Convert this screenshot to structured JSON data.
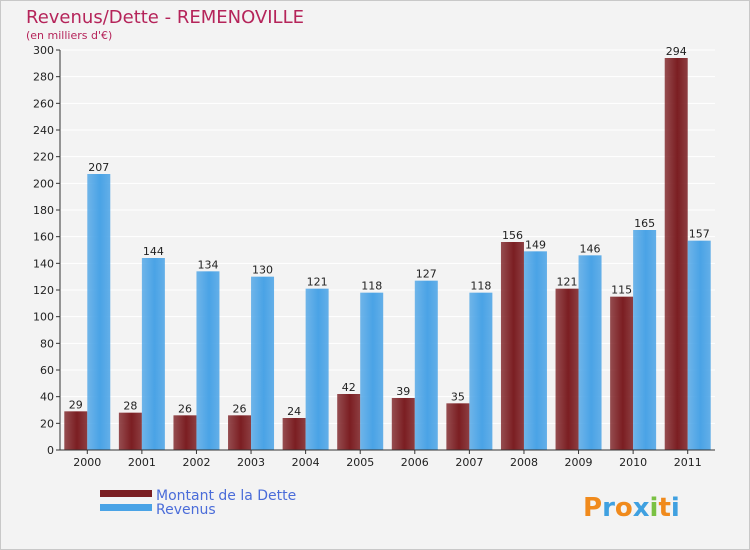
{
  "chart_data": {
    "type": "bar",
    "title": "Revenus/Dette - REMENOVILLE",
    "subtitle": "(en milliers d'€)",
    "categories": [
      "2000",
      "2001",
      "2002",
      "2003",
      "2004",
      "2005",
      "2006",
      "2007",
      "2008",
      "2009",
      "2010",
      "2011"
    ],
    "series": [
      {
        "name": "Montant de la Dette",
        "color": "#7b1e22",
        "values": [
          29,
          28,
          26,
          26,
          24,
          42,
          39,
          35,
          156,
          121,
          115,
          294
        ]
      },
      {
        "name": "Revenus",
        "color": "#4aa3e6",
        "values": [
          207,
          144,
          134,
          130,
          121,
          118,
          127,
          118,
          149,
          146,
          165,
          157
        ]
      }
    ],
    "ylim": [
      0,
      300
    ],
    "yticks": [
      0,
      20,
      40,
      60,
      80,
      100,
      120,
      140,
      160,
      180,
      200,
      220,
      240,
      260,
      280,
      300
    ],
    "grid": true,
    "legend_position": "bottom-left"
  },
  "brand": {
    "text": "Proxiti",
    "letters": [
      "P",
      "r",
      "o",
      "x",
      "i",
      "t",
      "i"
    ],
    "colors": [
      "#f08a1c",
      "#3fa0e0",
      "#f08a1c",
      "#3fa0e0",
      "#7ac143",
      "#f08a1c",
      "#3fa0e0"
    ]
  }
}
